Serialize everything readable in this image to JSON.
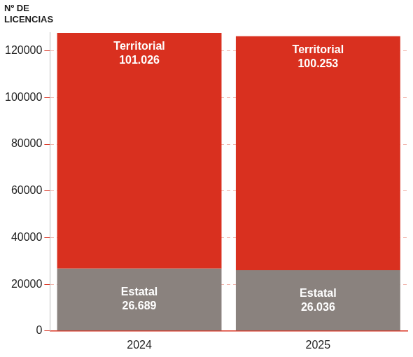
{
  "chart_data": {
    "type": "bar",
    "ylabel": "Nº DE LICENCIAS",
    "categories": [
      "2024",
      "2025"
    ],
    "series": [
      {
        "name": "Estatal",
        "color": "#8a827e",
        "values": [
          26689,
          26036
        ],
        "value_labels": [
          "26.689",
          "26.036"
        ]
      },
      {
        "name": "Territorial",
        "color": "#d9301f",
        "values": [
          101026,
          100253
        ],
        "value_labels": [
          "101.026",
          "100.253"
        ]
      }
    ],
    "stacked": true,
    "data_labels": true,
    "ylim": [
      0,
      128000
    ],
    "yticks": [
      0,
      20000,
      40000,
      60000,
      80000,
      100000,
      120000
    ],
    "grid": true
  }
}
